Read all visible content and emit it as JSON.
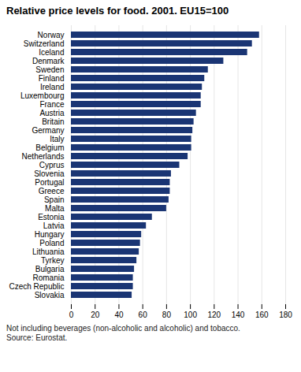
{
  "chart_data": {
    "type": "bar",
    "orientation": "horizontal",
    "title": "Relative price levels for food. 2001. EU15=100",
    "footnote": "Not including beverages (non-alcoholic and alcoholic) and tobacco.\nSource: Eurostat.",
    "categories": [
      "Norway",
      "Switzerland",
      "Iceland",
      "Denmark",
      "Sweden",
      "Finland",
      "Ireland",
      "Luxembourg",
      "France",
      "Austria",
      "Britain",
      "Germany",
      "Italy",
      "Belgium",
      "Netherlands",
      "Cyprus",
      "Slovenia",
      "Portugal",
      "Greece",
      "Spain",
      "Malta",
      "Estonia",
      "Latvia",
      "Hungary",
      "Poland",
      "Lithuania",
      "Tyrkey",
      "Bulgaria",
      "Romania",
      "Czech Republic",
      "Slovakia"
    ],
    "values": [
      158,
      152,
      148,
      128,
      115,
      112,
      110,
      109,
      109,
      105,
      103,
      102,
      101,
      101,
      98,
      91,
      84,
      83,
      83,
      82,
      80,
      68,
      63,
      59,
      58,
      57,
      55,
      53,
      52,
      52,
      51
    ],
    "color": "#1a3574",
    "xlim": [
      0,
      180
    ],
    "xticks": [
      0,
      20,
      40,
      60,
      80,
      100,
      120,
      140,
      160,
      180
    ],
    "grid": true
  }
}
